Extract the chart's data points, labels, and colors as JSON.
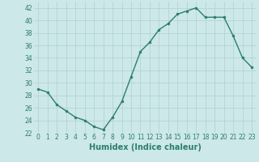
{
  "x": [
    0,
    1,
    2,
    3,
    4,
    5,
    6,
    7,
    8,
    9,
    10,
    11,
    12,
    13,
    14,
    15,
    16,
    17,
    18,
    19,
    20,
    21,
    22,
    23
  ],
  "y": [
    29,
    28.5,
    26.5,
    25.5,
    24.5,
    24,
    23,
    22.5,
    24.5,
    27,
    31,
    35,
    36.5,
    38.5,
    39.5,
    41,
    41.5,
    42,
    40.5,
    40.5,
    40.5,
    37.5,
    34,
    32.5
  ],
  "line_color": "#2e7d6e",
  "marker_color": "#2e7d6e",
  "bg_color": "#cce8e8",
  "grid_color": "#b0d0d0",
  "xlabel": "Humidex (Indice chaleur)",
  "xlabel_fontsize": 7,
  "tick_fontsize": 5.5,
  "tick_color": "#2e7d6e",
  "ylim": [
    22,
    43
  ],
  "yticks": [
    22,
    24,
    26,
    28,
    30,
    32,
    34,
    36,
    38,
    40,
    42
  ],
  "xlim": [
    -0.5,
    23.5
  ],
  "xticks": [
    0,
    1,
    2,
    3,
    4,
    5,
    6,
    7,
    8,
    9,
    10,
    11,
    12,
    13,
    14,
    15,
    16,
    17,
    18,
    19,
    20,
    21,
    22,
    23
  ]
}
